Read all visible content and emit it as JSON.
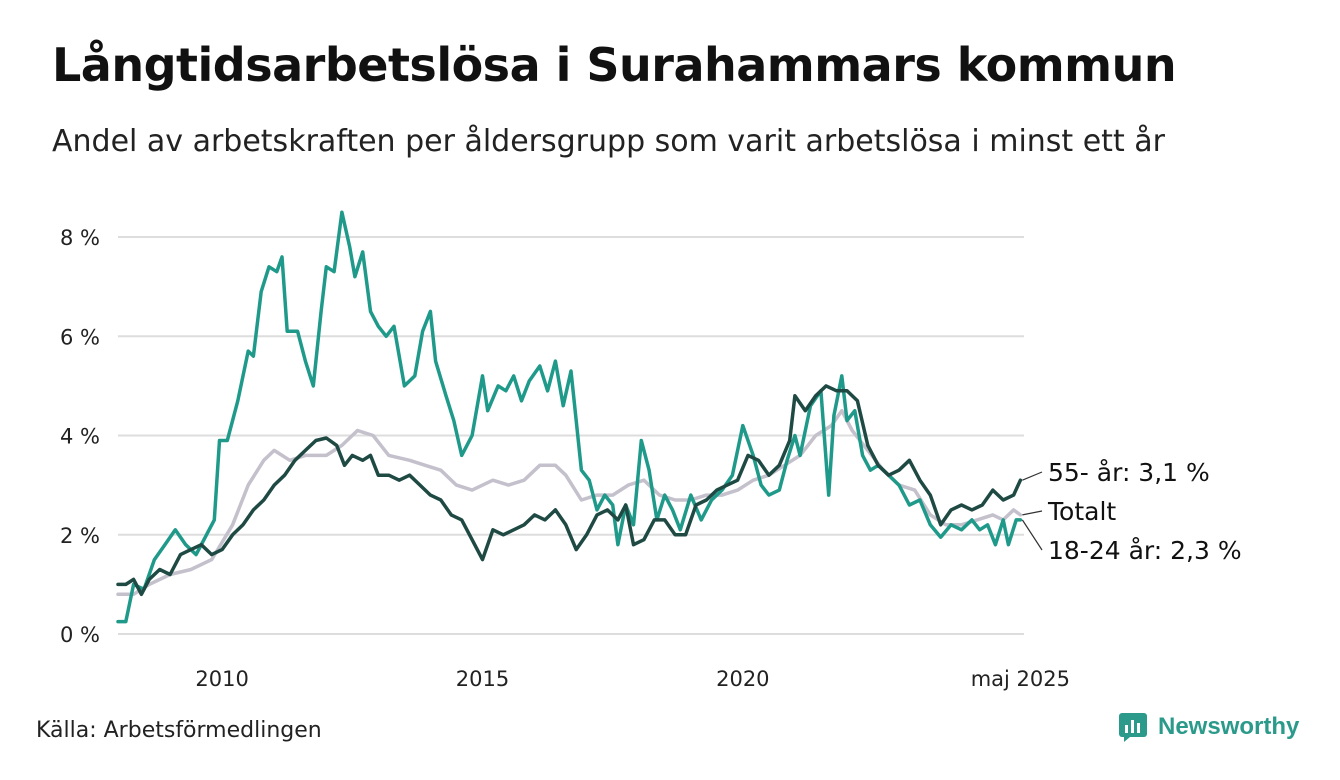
{
  "title": "Långtidsarbetslösa i Surahammars kommun",
  "subtitle": "Andel av arbetskraften per åldersgrupp som varit arbetslösa i minst ett år",
  "source": "Källa: Arbetsförmedlingen",
  "brand": {
    "name": "Newsworthy",
    "icon": "bar-chart-logo-icon",
    "color": "#2b9a8b"
  },
  "chart_data": {
    "type": "line",
    "x_range": [
      2008.0,
      2025.4
    ],
    "ylim": [
      0,
      8.6
    ],
    "y_ticks": [
      0,
      2,
      4,
      6,
      8
    ],
    "y_tick_labels": [
      "0 %",
      "2 %",
      "4 %",
      "6 %",
      "8 %"
    ],
    "x_ticks": [
      2010,
      2015,
      2020,
      2025.33
    ],
    "x_tick_labels": [
      "2010",
      "2015",
      "2020",
      "maj 2025"
    ],
    "grid": "horizontal",
    "series": [
      {
        "name": "Totalt",
        "end_label": "Totalt",
        "color": "#c4c0cc",
        "points": [
          [
            2008.0,
            0.8
          ],
          [
            2008.3,
            0.8
          ],
          [
            2008.6,
            1.0
          ],
          [
            2009.0,
            1.2
          ],
          [
            2009.4,
            1.3
          ],
          [
            2009.8,
            1.5
          ],
          [
            2010.2,
            2.2
          ],
          [
            2010.5,
            3.0
          ],
          [
            2010.8,
            3.5
          ],
          [
            2011.0,
            3.7
          ],
          [
            2011.3,
            3.5
          ],
          [
            2011.6,
            3.6
          ],
          [
            2012.0,
            3.6
          ],
          [
            2012.3,
            3.8
          ],
          [
            2012.6,
            4.1
          ],
          [
            2012.9,
            4.0
          ],
          [
            2013.2,
            3.6
          ],
          [
            2013.6,
            3.5
          ],
          [
            2013.9,
            3.4
          ],
          [
            2014.2,
            3.3
          ],
          [
            2014.5,
            3.0
          ],
          [
            2014.8,
            2.9
          ],
          [
            2015.2,
            3.1
          ],
          [
            2015.5,
            3.0
          ],
          [
            2015.8,
            3.1
          ],
          [
            2016.1,
            3.4
          ],
          [
            2016.4,
            3.4
          ],
          [
            2016.6,
            3.2
          ],
          [
            2016.9,
            2.7
          ],
          [
            2017.2,
            2.8
          ],
          [
            2017.5,
            2.8
          ],
          [
            2017.8,
            3.0
          ],
          [
            2018.1,
            3.1
          ],
          [
            2018.4,
            2.8
          ],
          [
            2018.7,
            2.7
          ],
          [
            2019.0,
            2.7
          ],
          [
            2019.3,
            2.8
          ],
          [
            2019.6,
            2.8
          ],
          [
            2019.9,
            2.9
          ],
          [
            2020.2,
            3.1
          ],
          [
            2020.5,
            3.2
          ],
          [
            2020.8,
            3.4
          ],
          [
            2021.1,
            3.6
          ],
          [
            2021.4,
            4.0
          ],
          [
            2021.7,
            4.2
          ],
          [
            2021.9,
            4.5
          ],
          [
            2022.1,
            4.1
          ],
          [
            2022.4,
            3.7
          ],
          [
            2022.7,
            3.3
          ],
          [
            2023.0,
            3.0
          ],
          [
            2023.3,
            2.9
          ],
          [
            2023.6,
            2.4
          ],
          [
            2023.9,
            2.2
          ],
          [
            2024.2,
            2.2
          ],
          [
            2024.5,
            2.3
          ],
          [
            2024.8,
            2.4
          ],
          [
            2025.0,
            2.3
          ],
          [
            2025.2,
            2.5
          ],
          [
            2025.33,
            2.4
          ]
        ]
      },
      {
        "name": "18-24 år",
        "end_label": "18-24 år: 2,3 %",
        "color": "#1f9a8a",
        "points": [
          [
            2008.0,
            0.25
          ],
          [
            2008.15,
            0.25
          ],
          [
            2008.3,
            1.0
          ],
          [
            2008.5,
            0.9
          ],
          [
            2008.7,
            1.5
          ],
          [
            2008.9,
            1.8
          ],
          [
            2009.1,
            2.1
          ],
          [
            2009.3,
            1.8
          ],
          [
            2009.5,
            1.6
          ],
          [
            2009.7,
            2.0
          ],
          [
            2009.85,
            2.3
          ],
          [
            2009.95,
            3.9
          ],
          [
            2010.1,
            3.9
          ],
          [
            2010.3,
            4.7
          ],
          [
            2010.5,
            5.7
          ],
          [
            2010.6,
            5.6
          ],
          [
            2010.75,
            6.9
          ],
          [
            2010.9,
            7.4
          ],
          [
            2011.05,
            7.3
          ],
          [
            2011.15,
            7.6
          ],
          [
            2011.25,
            6.1
          ],
          [
            2011.45,
            6.1
          ],
          [
            2011.6,
            5.5
          ],
          [
            2011.75,
            5.0
          ],
          [
            2011.9,
            6.5
          ],
          [
            2012.0,
            7.4
          ],
          [
            2012.15,
            7.3
          ],
          [
            2012.3,
            8.5
          ],
          [
            2012.45,
            7.8
          ],
          [
            2012.55,
            7.2
          ],
          [
            2012.7,
            7.7
          ],
          [
            2012.85,
            6.5
          ],
          [
            2013.0,
            6.2
          ],
          [
            2013.15,
            6.0
          ],
          [
            2013.3,
            6.2
          ],
          [
            2013.5,
            5.0
          ],
          [
            2013.7,
            5.2
          ],
          [
            2013.85,
            6.1
          ],
          [
            2014.0,
            6.5
          ],
          [
            2014.1,
            5.5
          ],
          [
            2014.3,
            4.8
          ],
          [
            2014.45,
            4.3
          ],
          [
            2014.6,
            3.6
          ],
          [
            2014.8,
            4.0
          ],
          [
            2015.0,
            5.2
          ],
          [
            2015.1,
            4.5
          ],
          [
            2015.3,
            5.0
          ],
          [
            2015.45,
            4.9
          ],
          [
            2015.6,
            5.2
          ],
          [
            2015.75,
            4.7
          ],
          [
            2015.9,
            5.1
          ],
          [
            2016.1,
            5.4
          ],
          [
            2016.25,
            4.9
          ],
          [
            2016.4,
            5.5
          ],
          [
            2016.55,
            4.6
          ],
          [
            2016.7,
            5.3
          ],
          [
            2016.9,
            3.3
          ],
          [
            2017.05,
            3.1
          ],
          [
            2017.2,
            2.5
          ],
          [
            2017.35,
            2.8
          ],
          [
            2017.5,
            2.6
          ],
          [
            2017.6,
            1.8
          ],
          [
            2017.75,
            2.6
          ],
          [
            2017.9,
            2.2
          ],
          [
            2018.05,
            3.9
          ],
          [
            2018.2,
            3.3
          ],
          [
            2018.35,
            2.3
          ],
          [
            2018.5,
            2.8
          ],
          [
            2018.65,
            2.5
          ],
          [
            2018.8,
            2.1
          ],
          [
            2019.0,
            2.8
          ],
          [
            2019.2,
            2.3
          ],
          [
            2019.4,
            2.7
          ],
          [
            2019.6,
            2.9
          ],
          [
            2019.8,
            3.2
          ],
          [
            2020.0,
            4.2
          ],
          [
            2020.2,
            3.6
          ],
          [
            2020.35,
            3.0
          ],
          [
            2020.5,
            2.8
          ],
          [
            2020.7,
            2.9
          ],
          [
            2020.85,
            3.5
          ],
          [
            2021.0,
            4.0
          ],
          [
            2021.1,
            3.6
          ],
          [
            2021.3,
            4.6
          ],
          [
            2021.5,
            4.9
          ],
          [
            2021.65,
            2.8
          ],
          [
            2021.75,
            4.4
          ],
          [
            2021.9,
            5.2
          ],
          [
            2022.0,
            4.3
          ],
          [
            2022.15,
            4.5
          ],
          [
            2022.3,
            3.6
          ],
          [
            2022.45,
            3.3
          ],
          [
            2022.6,
            3.4
          ],
          [
            2022.8,
            3.2
          ],
          [
            2023.0,
            3.0
          ],
          [
            2023.2,
            2.6
          ],
          [
            2023.4,
            2.7
          ],
          [
            2023.6,
            2.2
          ],
          [
            2023.8,
            1.95
          ],
          [
            2024.0,
            2.2
          ],
          [
            2024.2,
            2.1
          ],
          [
            2024.4,
            2.3
          ],
          [
            2024.55,
            2.1
          ],
          [
            2024.7,
            2.2
          ],
          [
            2024.85,
            1.8
          ],
          [
            2025.0,
            2.3
          ],
          [
            2025.1,
            1.8
          ],
          [
            2025.25,
            2.3
          ],
          [
            2025.33,
            2.3
          ]
        ]
      },
      {
        "name": "55- år",
        "end_label": "55- år: 3,1 %",
        "color": "#1f4a44",
        "points": [
          [
            2008.0,
            1.0
          ],
          [
            2008.15,
            1.0
          ],
          [
            2008.3,
            1.1
          ],
          [
            2008.45,
            0.8
          ],
          [
            2008.6,
            1.1
          ],
          [
            2008.8,
            1.3
          ],
          [
            2009.0,
            1.2
          ],
          [
            2009.2,
            1.6
          ],
          [
            2009.4,
            1.7
          ],
          [
            2009.6,
            1.8
          ],
          [
            2009.8,
            1.6
          ],
          [
            2010.0,
            1.7
          ],
          [
            2010.2,
            2.0
          ],
          [
            2010.4,
            2.2
          ],
          [
            2010.6,
            2.5
          ],
          [
            2010.8,
            2.7
          ],
          [
            2011.0,
            3.0
          ],
          [
            2011.2,
            3.2
          ],
          [
            2011.4,
            3.5
          ],
          [
            2011.6,
            3.7
          ],
          [
            2011.8,
            3.9
          ],
          [
            2012.0,
            3.95
          ],
          [
            2012.2,
            3.8
          ],
          [
            2012.35,
            3.4
          ],
          [
            2012.5,
            3.6
          ],
          [
            2012.7,
            3.5
          ],
          [
            2012.85,
            3.6
          ],
          [
            2013.0,
            3.2
          ],
          [
            2013.2,
            3.2
          ],
          [
            2013.4,
            3.1
          ],
          [
            2013.6,
            3.2
          ],
          [
            2013.8,
            3.0
          ],
          [
            2014.0,
            2.8
          ],
          [
            2014.2,
            2.7
          ],
          [
            2014.4,
            2.4
          ],
          [
            2014.6,
            2.3
          ],
          [
            2014.8,
            1.9
          ],
          [
            2015.0,
            1.5
          ],
          [
            2015.2,
            2.1
          ],
          [
            2015.4,
            2.0
          ],
          [
            2015.6,
            2.1
          ],
          [
            2015.8,
            2.2
          ],
          [
            2016.0,
            2.4
          ],
          [
            2016.2,
            2.3
          ],
          [
            2016.4,
            2.5
          ],
          [
            2016.6,
            2.2
          ],
          [
            2016.8,
            1.7
          ],
          [
            2017.0,
            2.0
          ],
          [
            2017.2,
            2.4
          ],
          [
            2017.4,
            2.5
          ],
          [
            2017.6,
            2.3
          ],
          [
            2017.75,
            2.6
          ],
          [
            2017.9,
            1.8
          ],
          [
            2018.1,
            1.9
          ],
          [
            2018.3,
            2.3
          ],
          [
            2018.5,
            2.3
          ],
          [
            2018.7,
            2.0
          ],
          [
            2018.9,
            2.0
          ],
          [
            2019.1,
            2.6
          ],
          [
            2019.3,
            2.7
          ],
          [
            2019.5,
            2.9
          ],
          [
            2019.7,
            3.0
          ],
          [
            2019.9,
            3.1
          ],
          [
            2020.1,
            3.6
          ],
          [
            2020.3,
            3.5
          ],
          [
            2020.5,
            3.2
          ],
          [
            2020.7,
            3.4
          ],
          [
            2020.9,
            3.9
          ],
          [
            2021.0,
            4.8
          ],
          [
            2021.2,
            4.5
          ],
          [
            2021.4,
            4.8
          ],
          [
            2021.6,
            5.0
          ],
          [
            2021.8,
            4.9
          ],
          [
            2022.0,
            4.9
          ],
          [
            2022.2,
            4.7
          ],
          [
            2022.4,
            3.8
          ],
          [
            2022.6,
            3.4
          ],
          [
            2022.8,
            3.2
          ],
          [
            2023.0,
            3.3
          ],
          [
            2023.2,
            3.5
          ],
          [
            2023.4,
            3.1
          ],
          [
            2023.6,
            2.8
          ],
          [
            2023.8,
            2.2
          ],
          [
            2024.0,
            2.5
          ],
          [
            2024.2,
            2.6
          ],
          [
            2024.4,
            2.5
          ],
          [
            2024.6,
            2.6
          ],
          [
            2024.8,
            2.9
          ],
          [
            2025.0,
            2.7
          ],
          [
            2025.2,
            2.8
          ],
          [
            2025.33,
            3.1
          ]
        ]
      }
    ]
  }
}
